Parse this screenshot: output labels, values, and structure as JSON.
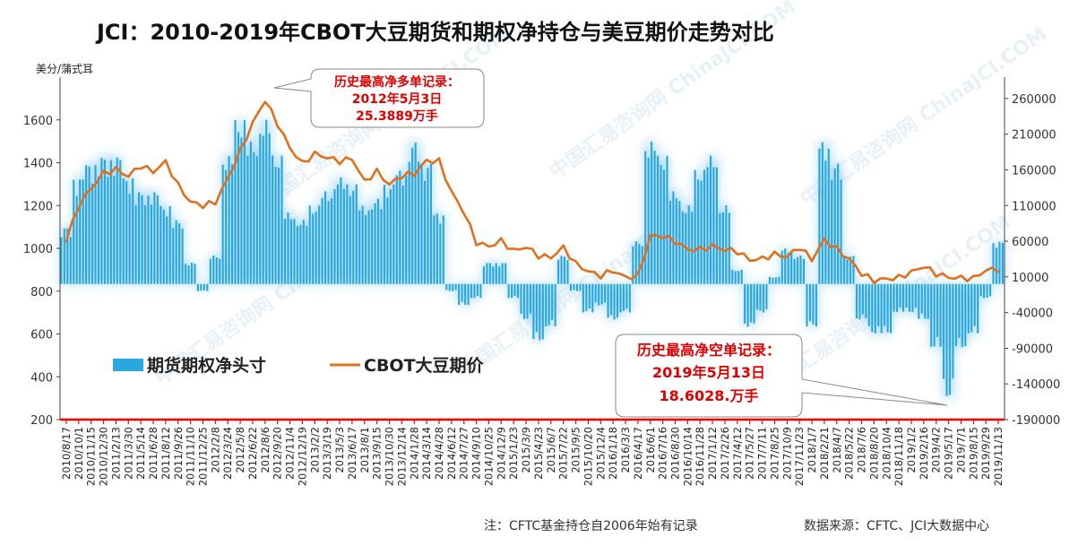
{
  "title": "JCI：2010-2019年CBOT大豆期货和期权净持仓与美豆期价走势对比",
  "left_unit": "美分/蒲式耳",
  "footnote": "注：CFTC基金持仓自2006年始有记录",
  "source": "数据来源：CFTC、JCI大数据中心",
  "watermark": "中国汇易咨询网  ChinaJCI.COM",
  "legend": {
    "bars": "期货期权净头寸",
    "line": "CBOT大豆期价",
    "position": "middle-left"
  },
  "colors": {
    "bars": "#29a8e0",
    "glow": "#9fd4f5",
    "line": "#e0701c",
    "callout_text": "#e00000",
    "axis_red": "#ff0000"
  },
  "callouts": [
    {
      "line1": "历史最高净多单记录：",
      "line2": "2012年5月3日",
      "line3": "25.3889万手"
    },
    {
      "line1": "历史最高净空单记录：",
      "line2": "2019年5月13日",
      "line3": "18.6028.万手"
    }
  ],
  "chart_data": {
    "type": "bar+line",
    "x_labels": [
      "2010/8/17",
      "2010/10/1",
      "2010/11/15",
      "2010/12/30",
      "2011/2/13",
      "2011/3/30",
      "2011/5/14",
      "2011/6/28",
      "2011/8/12",
      "2011/9/26",
      "2011/11/10",
      "2011/12/25",
      "2012/2/8",
      "2012/3/24",
      "2012/5/8",
      "2012/6/22",
      "2012/8/6",
      "2012/9/20",
      "2012/11/4",
      "2012/12/19",
      "2013/2/2",
      "2013/3/19",
      "2013/5/3",
      "2013/6/17",
      "2013/8/1",
      "2013/9/15",
      "2013/10/30",
      "2013/12/14",
      "2014/1/28",
      "2014/3/14",
      "2014/4/28",
      "2014/6/12",
      "2014/7/27",
      "2014/9/10",
      "2014/10/25",
      "2014/12/9",
      "2015/1/23",
      "2015/3/9",
      "2015/4/23",
      "2015/6/7",
      "2015/7/22",
      "2015/9/5",
      "2015/10/20",
      "2015/12/4",
      "2016/1/18",
      "2016/3/3",
      "2016/4/17",
      "2016/6/1",
      "2016/7/16",
      "2016/8/30",
      "2016/10/14",
      "2016/11/28",
      "2017/1/12",
      "2017/2/26",
      "2017/4/12",
      "2017/5/27",
      "2017/7/11",
      "2017/8/25",
      "2017/10/9",
      "2017/11/23",
      "2018/1/7",
      "2018/2/21",
      "2018/4/7",
      "2018/5/22",
      "2018/7/6",
      "2018/8/20",
      "2018/10/4",
      "2018/11/18",
      "2019/1/2",
      "2019/2/16",
      "2019/4/2",
      "2019/5/17",
      "2019/7/1",
      "2019/8/15",
      "2019/9/29",
      "2019/11/13"
    ],
    "y_left": {
      "label": "美分/蒲式耳",
      "range": [
        200,
        1800
      ],
      "ticks": [
        200,
        400,
        600,
        800,
        1000,
        1200,
        1400,
        1600
      ]
    },
    "y_right": {
      "range": [
        -190000,
        290000
      ],
      "ticks": [
        -190000,
        -140000,
        -90000,
        -40000,
        10000,
        60000,
        110000,
        160000,
        210000,
        260000
      ]
    },
    "series": [
      {
        "name": "期货期权净头寸",
        "kind": "bar",
        "axis": "right",
        "values": [
          80000,
          150000,
          170000,
          180000,
          180000,
          150000,
          130000,
          130000,
          110000,
          90000,
          30000,
          -10000,
          40000,
          180000,
          230000,
          200000,
          230000,
          180000,
          100000,
          90000,
          110000,
          130000,
          150000,
          140000,
          110000,
          120000,
          140000,
          160000,
          200000,
          170000,
          100000,
          -10000,
          -30000,
          -20000,
          30000,
          30000,
          -20000,
          -50000,
          -80000,
          -60000,
          40000,
          -10000,
          -40000,
          -30000,
          -50000,
          -40000,
          60000,
          200000,
          180000,
          130000,
          110000,
          160000,
          180000,
          110000,
          20000,
          -60000,
          -40000,
          10000,
          50000,
          40000,
          -60000,
          200000,
          170000,
          40000,
          -50000,
          -70000,
          -70000,
          -40000,
          -40000,
          -50000,
          -90000,
          -160000,
          -90000,
          -70000,
          -20000,
          60000
        ]
      },
      {
        "name": "CBOT大豆期价",
        "kind": "line",
        "axis": "left",
        "values": [
          1030,
          1180,
          1290,
          1350,
          1390,
          1330,
          1370,
          1360,
          1400,
          1320,
          1210,
          1190,
          1210,
          1320,
          1480,
          1580,
          1690,
          1570,
          1460,
          1420,
          1440,
          1430,
          1390,
          1410,
          1330,
          1360,
          1310,
          1320,
          1340,
          1420,
          1410,
          1280,
          1150,
          1020,
          1010,
          1040,
          1010,
          990,
          960,
          950,
          1010,
          950,
          880,
          870,
          880,
          870,
          890,
          1050,
          1060,
          1010,
          1000,
          1010,
          1010,
          1000,
          960,
          950,
          960,
          980,
          970,
          980,
          950,
          1040,
          1010,
          960,
          860,
          850,
          850,
          880,
          900,
          900,
          880,
          850,
          880,
          870,
          890,
          900
        ]
      }
    ]
  }
}
